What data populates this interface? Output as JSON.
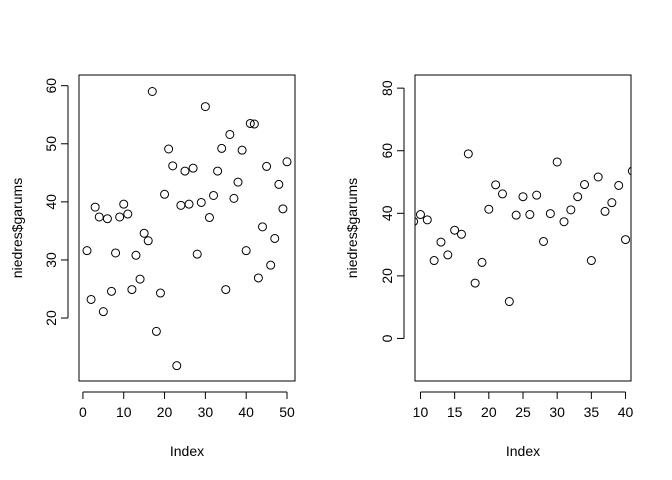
{
  "chart_data": [
    {
      "type": "scatter",
      "title": "",
      "xlabel": "Index",
      "ylabel": "niedres$garums",
      "xlim": [
        -0.96,
        51.96
      ],
      "ylim": [
        9.16,
        61.84
      ],
      "xticks": [
        "0",
        "10",
        "20",
        "30",
        "40",
        "50"
      ],
      "yticks": [
        "20",
        "30",
        "40",
        "50",
        "60"
      ],
      "grid": false,
      "legend": "none",
      "point_style": "open-circle",
      "point_color": "#000000",
      "x": [
        1,
        2,
        3,
        4,
        5,
        6,
        7,
        8,
        9,
        10,
        11,
        12,
        13,
        14,
        15,
        16,
        17,
        18,
        19,
        20,
        21,
        22,
        23,
        24,
        25,
        26,
        27,
        28,
        29,
        30,
        31,
        32,
        33,
        34,
        35,
        36,
        37,
        38,
        39,
        40,
        41,
        42,
        43,
        44,
        45,
        46,
        47,
        48,
        49,
        50
      ],
      "y": [
        31.6,
        23.2,
        39.1,
        37.4,
        21.1,
        37.1,
        24.6,
        31.2,
        37.4,
        39.6,
        37.9,
        24.9,
        30.8,
        26.7,
        34.6,
        33.3,
        59.0,
        17.7,
        24.3,
        41.3,
        49.1,
        46.2,
        11.8,
        39.4,
        45.3,
        39.6,
        45.8,
        31.0,
        39.9,
        56.4,
        37.3,
        41.1,
        45.3,
        49.2,
        24.9,
        51.6,
        40.6,
        43.4,
        48.9,
        31.6,
        53.5,
        53.4,
        26.9,
        35.7,
        46.1,
        29.1,
        33.7,
        43.0,
        38.8,
        46.9
      ]
    },
    {
      "type": "scatter",
      "title": "",
      "xlabel": "Index",
      "ylabel": "niedres$garums",
      "xlim": [
        9.2,
        40.8
      ],
      "ylim": [
        -13.6,
        84.2
      ],
      "xticks": [
        "10",
        "15",
        "20",
        "25",
        "30",
        "35",
        "40"
      ],
      "yticks": [
        "0",
        "20",
        "40",
        "60",
        "80"
      ],
      "grid": false,
      "legend": "none",
      "point_style": "open-circle",
      "point_color": "#000000",
      "x": [
        9,
        10,
        11,
        12,
        13,
        14,
        15,
        16,
        17,
        18,
        19,
        20,
        21,
        22,
        23,
        24,
        25,
        26,
        27,
        28,
        29,
        30,
        31,
        32,
        33,
        34,
        35,
        36,
        37,
        38,
        39,
        40,
        41
      ],
      "y": [
        37.4,
        39.6,
        37.9,
        24.9,
        30.8,
        26.7,
        34.6,
        33.3,
        59.0,
        17.7,
        24.3,
        41.3,
        49.1,
        46.2,
        11.8,
        39.4,
        45.3,
        39.6,
        45.8,
        31.0,
        39.9,
        56.4,
        37.3,
        41.1,
        45.3,
        49.2,
        24.9,
        51.6,
        40.6,
        43.4,
        48.9,
        31.6,
        53.5
      ]
    }
  ]
}
